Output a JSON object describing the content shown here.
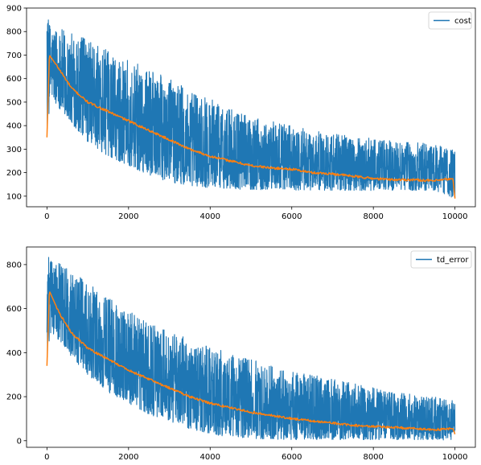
{
  "chart_data": [
    {
      "type": "line",
      "xlim": [
        -500,
        10500
      ],
      "ylim": [
        55,
        900
      ],
      "xticks": [
        0,
        2000,
        4000,
        6000,
        8000,
        10000
      ],
      "xtick_labels": [
        "0",
        "2000",
        "4000",
        "6000",
        "8000",
        "10000"
      ],
      "yticks": [
        100,
        200,
        300,
        400,
        500,
        600,
        700,
        800,
        900
      ],
      "ytick_labels": [
        "100",
        "200",
        "300",
        "400",
        "500",
        "600",
        "700",
        "800",
        "900"
      ],
      "grid": false,
      "legend_position": "top-right",
      "series": [
        {
          "name": "cost",
          "color": "#1f77b4",
          "band": {
            "x": [
              0,
              100,
              500,
              1000,
              1500,
              2000,
              2500,
              3000,
              3500,
              4000,
              4500,
              5000,
              5500,
              6000,
              6500,
              7000,
              7500,
              8000,
              8500,
              9000,
              9500,
              10000
            ],
            "low": [
              350,
              520,
              430,
              330,
              270,
              230,
              190,
              160,
              145,
              135,
              130,
              128,
              127,
              126,
              125,
              125,
              124,
              124,
              124,
              124,
              123,
              90
            ],
            "high": [
              860,
              840,
              800,
              770,
              720,
              680,
              640,
              600,
              560,
              520,
              470,
              440,
              420,
              400,
              380,
              370,
              355,
              345,
              335,
              330,
              320,
              300
            ]
          }
        },
        {
          "name": "",
          "color": "#ff7f0e",
          "x": [
            0,
            60,
            300,
            600,
            1000,
            1500,
            2000,
            2500,
            3000,
            3500,
            4000,
            4500,
            5000,
            5500,
            6000,
            6500,
            7000,
            7500,
            8000,
            8500,
            9000,
            9500,
            9950,
            10000
          ],
          "y": [
            350,
            700,
            640,
            560,
            500,
            460,
            420,
            380,
            340,
            300,
            270,
            250,
            230,
            220,
            215,
            200,
            195,
            185,
            175,
            170,
            170,
            165,
            175,
            90
          ]
        }
      ]
    },
    {
      "type": "line",
      "xlim": [
        -500,
        10500
      ],
      "ylim": [
        -30,
        880
      ],
      "xticks": [
        0,
        2000,
        4000,
        6000,
        8000,
        10000
      ],
      "xtick_labels": [
        "0",
        "2000",
        "4000",
        "6000",
        "8000",
        "10000"
      ],
      "yticks": [
        0,
        200,
        400,
        600,
        800
      ],
      "ytick_labels": [
        "0",
        "200",
        "400",
        "600",
        "800"
      ],
      "grid": false,
      "legend_position": "top-right",
      "series": [
        {
          "name": "td_error",
          "color": "#1f77b4",
          "band": {
            "x": [
              0,
              100,
              500,
              1000,
              1500,
              2000,
              2500,
              3000,
              3500,
              4000,
              4500,
              5000,
              5500,
              6000,
              6500,
              7000,
              7500,
              8000,
              8500,
              9000,
              9500,
              10000
            ],
            "low": [
              340,
              500,
              400,
              300,
              220,
              170,
              120,
              80,
              50,
              30,
              15,
              10,
              5,
              5,
              5,
              5,
              5,
              5,
              5,
              5,
              5,
              0
            ],
            "high": [
              850,
              830,
              780,
              720,
              650,
              590,
              540,
              500,
              460,
              430,
              400,
              370,
              340,
              320,
              300,
              280,
              260,
              240,
              220,
              210,
              200,
              180
            ]
          }
        },
        {
          "name": "",
          "color": "#ff7f0e",
          "x": [
            0,
            60,
            300,
            600,
            1000,
            1500,
            2000,
            2500,
            3000,
            3500,
            4000,
            4500,
            5000,
            5500,
            6000,
            6500,
            7000,
            7500,
            8000,
            8500,
            9000,
            9500,
            9950,
            10000
          ],
          "y": [
            340,
            680,
            580,
            490,
            420,
            370,
            320,
            280,
            240,
            200,
            170,
            150,
            130,
            115,
            100,
            90,
            80,
            70,
            65,
            60,
            55,
            50,
            55,
            30
          ]
        }
      ]
    }
  ]
}
